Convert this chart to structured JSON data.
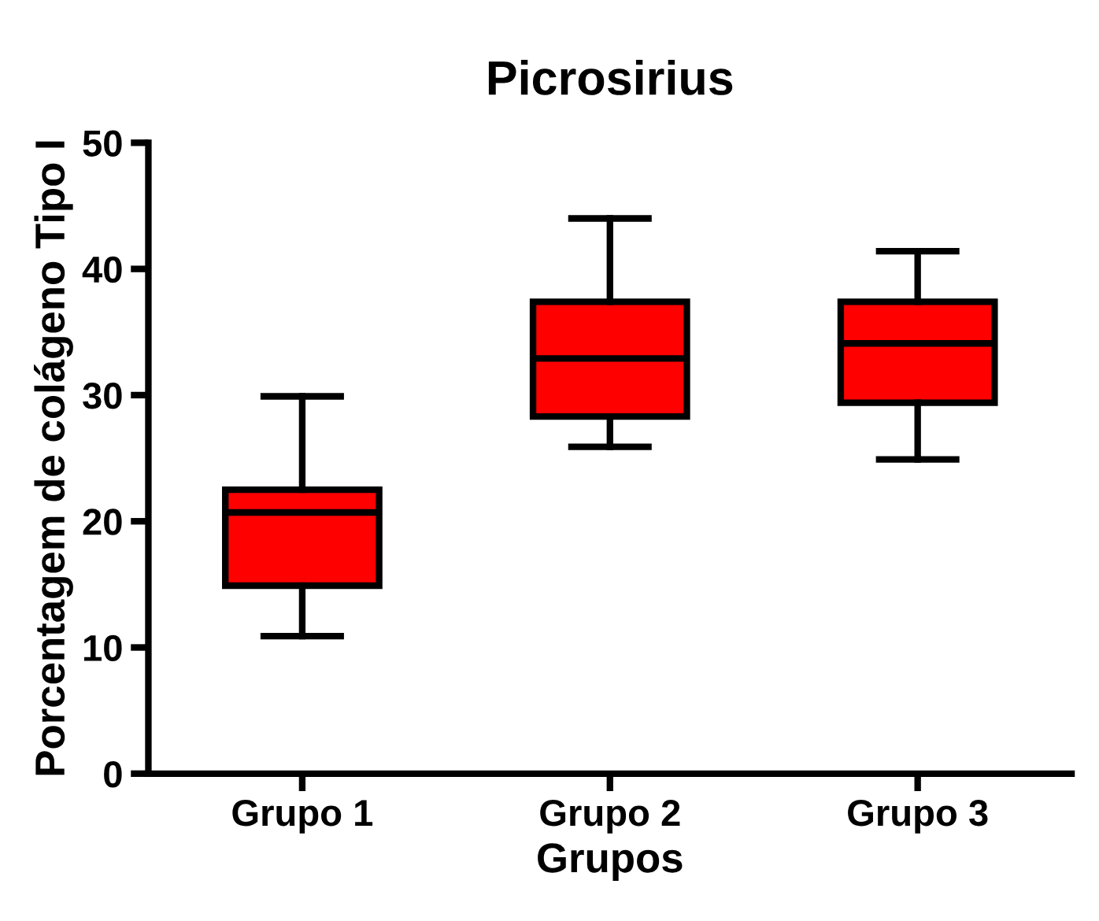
{
  "chart_data": {
    "type": "box",
    "title": "Picrosirius",
    "xlabel": "Grupos",
    "ylabel": "Porcentagem de colágeno Tipo I",
    "categories": [
      "Grupo 1",
      "Grupo 2",
      "Grupo 3"
    ],
    "boxes": [
      {
        "low": 10.9,
        "q1": 14.9,
        "median": 20.7,
        "q3": 22.5,
        "high": 29.9
      },
      {
        "low": 25.9,
        "q1": 28.3,
        "median": 32.9,
        "q3": 37.4,
        "high": 44
      },
      {
        "low": 24.9,
        "q1": 29.4,
        "median": 34.1,
        "q3": 37.4,
        "high": 41.4
      }
    ],
    "color": "#ff0000",
    "ylim": [
      0,
      50
    ],
    "yticks": [
      0,
      10,
      20,
      30,
      40,
      50
    ],
    "grid": false,
    "legend": false
  }
}
